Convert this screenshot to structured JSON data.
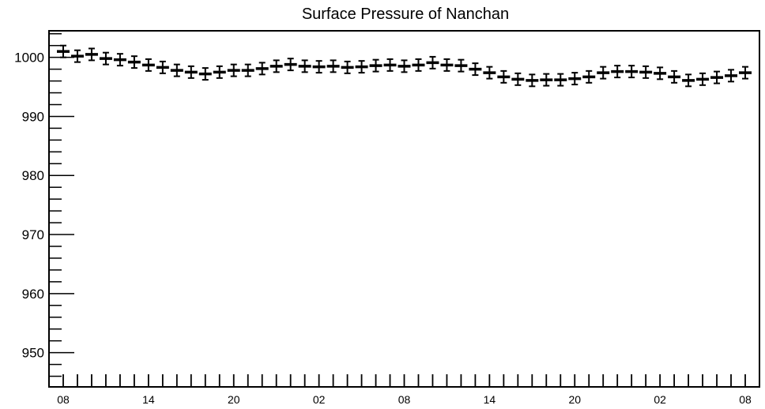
{
  "chart_data": {
    "type": "scatter",
    "title": "Surface Pressure of Nanchan",
    "xlabel": "",
    "ylabel": "",
    "ylim": [
      944.2,
      1004.5
    ],
    "ymajor_ticks": [
      950,
      960,
      970,
      980,
      990,
      1000
    ],
    "ytick_labels": [
      "950",
      "960",
      "970",
      "980",
      "990",
      "1000"
    ],
    "x_hour_start": 8,
    "x_tick_labels": [
      "08",
      "14",
      "20",
      "02",
      "08",
      "14",
      "20",
      "02",
      "08"
    ],
    "series": [
      {
        "error": 1,
        "values": [
          1001.0,
          1000.2,
          1000.5,
          999.8,
          999.6,
          999.2,
          998.7,
          998.3,
          997.8,
          997.5,
          997.2,
          997.5,
          997.8,
          997.8,
          998.1,
          998.5,
          998.8,
          998.5,
          998.4,
          998.5,
          998.3,
          998.4,
          998.6,
          998.7,
          998.5,
          998.7,
          999.1,
          998.7,
          998.6,
          998.0,
          997.4,
          996.7,
          996.3,
          996.1,
          996.2,
          996.2,
          996.4,
          996.7,
          997.4,
          997.6,
          997.6,
          997.5,
          997.3,
          996.7,
          996.1,
          996.3,
          996.6,
          996.9,
          997.4
        ]
      }
    ]
  }
}
